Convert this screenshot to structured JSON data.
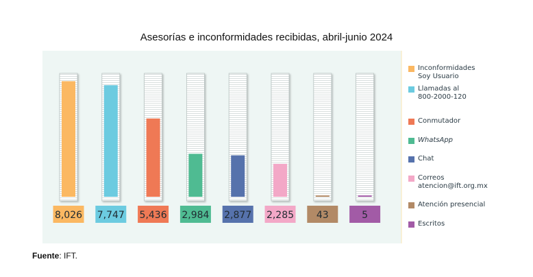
{
  "title": "Asesorías e inconformidades recibidas, abril-junio 2024",
  "source": {
    "label": "Fuente",
    "text": ": IFT."
  },
  "chart_data": {
    "type": "bar",
    "title": "Asesorías e inconformidades recibidas, abril-junio 2024",
    "xlabel": "",
    "ylabel": "",
    "ylim": [
      0,
      8500
    ],
    "grid": false,
    "legend_position": "right",
    "categories": [
      "Inconformidades Soy Usuario",
      "Llamadas al 800-2000-120",
      "Conmutador",
      "WhatsApp",
      "Chat",
      "Correos atencion@ift.org.mx",
      "Atención presencial",
      "Escritos"
    ],
    "values": [
      8026,
      7747,
      5436,
      2984,
      2877,
      2285,
      43,
      5
    ],
    "value_labels": [
      "8,026",
      "7,747",
      "5,436",
      "2,984",
      "2,877",
      "2,285",
      "43",
      "5"
    ],
    "colors": [
      "#fbb862",
      "#6ccbe0",
      "#ef7955",
      "#4fbb92",
      "#5672ac",
      "#f3a8c7",
      "#b28a66",
      "#a25ba6"
    ]
  },
  "legend": [
    {
      "label": "Inconformidades\nSoy Usuario",
      "color": "#fbb862",
      "italic": false
    },
    {
      "label": "Llamadas al\n800-2000-120",
      "color": "#6ccbe0",
      "italic": false
    },
    {
      "label": "Conmutador",
      "color": "#ef7955",
      "italic": false
    },
    {
      "label": "WhatsApp",
      "color": "#4fbb92",
      "italic": true
    },
    {
      "label": "Chat",
      "color": "#5672ac",
      "italic": false
    },
    {
      "label": "Correos\natencion@ift.org.mx",
      "color": "#f3a8c7",
      "italic": false
    },
    {
      "label": "Atención presencial",
      "color": "#b28a66",
      "italic": false
    },
    {
      "label": "Escritos",
      "color": "#a25ba6",
      "italic": false
    }
  ],
  "colors": {
    "panel_bg": "#eef6f4",
    "divider": "#fbe7b4",
    "tube_bg": "#ffffff",
    "tube_line": "#c9d2d0",
    "label_text": "#1f2a30"
  }
}
